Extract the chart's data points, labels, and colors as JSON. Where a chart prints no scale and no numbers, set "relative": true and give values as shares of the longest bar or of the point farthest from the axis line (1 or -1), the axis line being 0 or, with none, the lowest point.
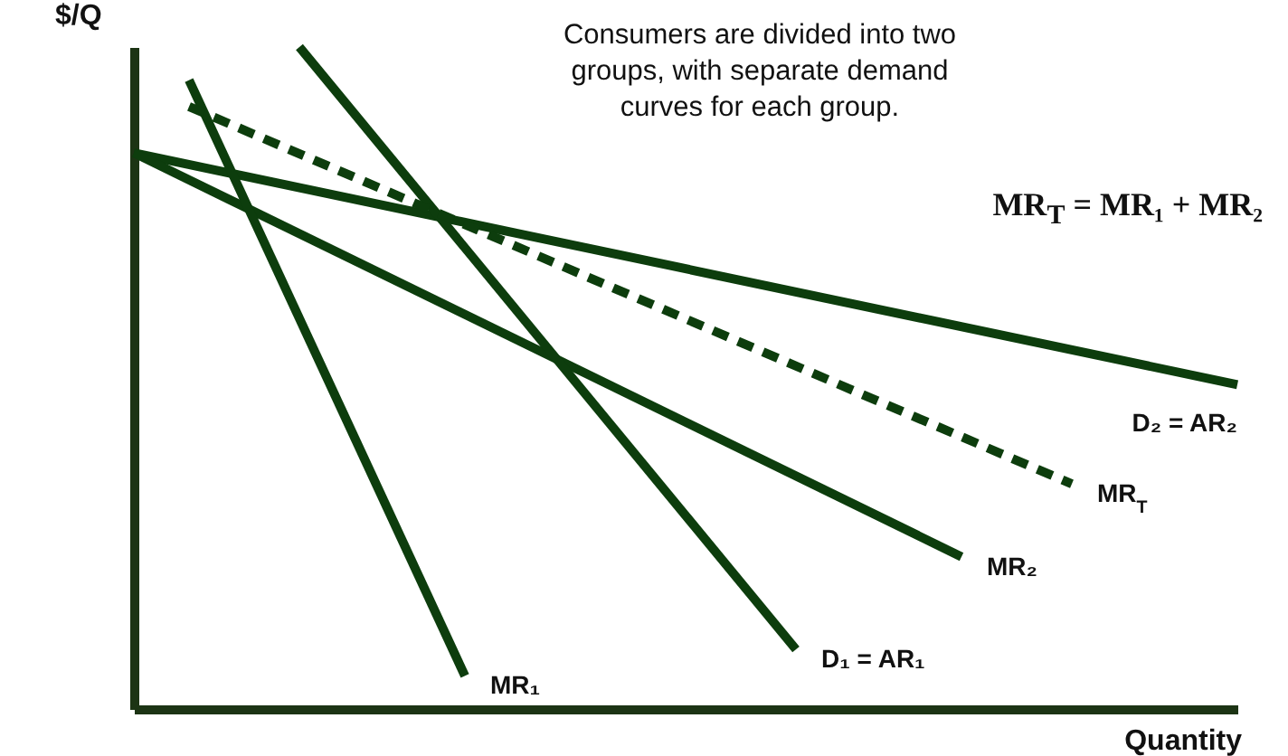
{
  "chart_data": {
    "type": "line",
    "relative": true,
    "xlabel": "Quantity",
    "ylabel": "$/Q",
    "categories": [
      null,
      null,
      null,
      null,
      null,
      null,
      null,
      null,
      null,
      null,
      null,
      null,
      null,
      null,
      null,
      null,
      null,
      null,
      null,
      null,
      null
    ],
    "annotations": [
      "Consumers are divided into two groups, with separate demand curves for each group.",
      "MR$_{T}$ = MR₁ + MR₂"
    ],
    "series": [
      {
        "name": "D₂ = AR₂",
        "color": "#0d3d0d",
        "values": [
          0.84,
          null,
          null,
          null,
          null,
          null,
          null,
          null,
          null,
          null,
          null,
          null,
          null,
          null,
          null,
          null,
          null,
          null,
          null,
          null,
          0.49
        ]
      },
      {
        "name": "MR₂",
        "color": "#0d3d0d",
        "values": [
          0.84,
          null,
          null,
          null,
          null,
          null,
          null,
          null,
          null,
          null,
          null,
          null,
          null,
          null,
          null,
          0.23,
          null,
          null,
          null,
          null,
          null
        ]
      },
      {
        "name": "D₁ = AR₁",
        "color": "#0d3d0d",
        "values": [
          null,
          null,
          null,
          1.0,
          null,
          null,
          null,
          null,
          null,
          null,
          null,
          null,
          0.09,
          null,
          null,
          null,
          null,
          null,
          null,
          null,
          null
        ]
      },
      {
        "name": "MR₁",
        "color": "#0d3d0d",
        "values": [
          null,
          0.95,
          null,
          null,
          null,
          null,
          0.05,
          null,
          null,
          null,
          null,
          null,
          null,
          null,
          null,
          null,
          null,
          null,
          null,
          null,
          null
        ]
      },
      {
        "name": "MR$_{T}$",
        "color": "#0d3d0d",
        "values": [
          null,
          0.91,
          null,
          null,
          null,
          null,
          null,
          null,
          null,
          null,
          null,
          null,
          null,
          null,
          null,
          null,
          null,
          0.34,
          null,
          null,
          null
        ],
        "line_style": "dashed"
      }
    ]
  }
}
